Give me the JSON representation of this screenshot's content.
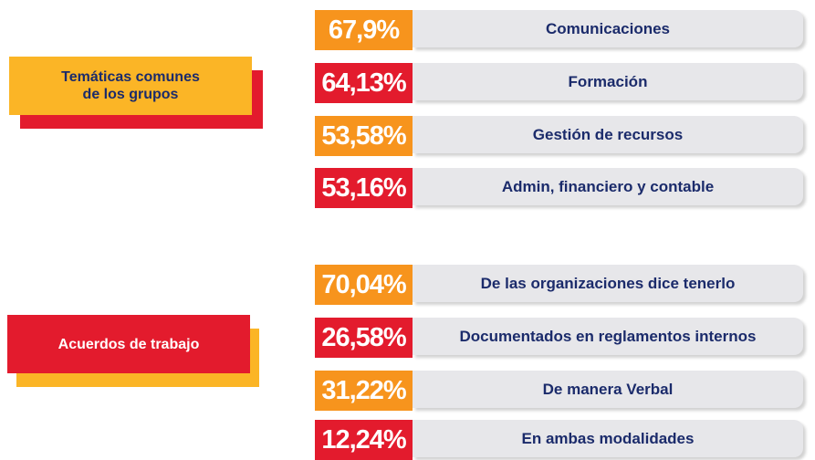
{
  "sections": [
    {
      "title": "Temáticas comunes de los grupos",
      "items": [
        {
          "value": "67,9%",
          "label": "Comunicaciones"
        },
        {
          "value": "64,13%",
          "label": "Formación"
        },
        {
          "value": "53,58%",
          "label": "Gestión de recursos"
        },
        {
          "value": "53,16%",
          "label": "Admin, financiero y contable"
        }
      ]
    },
    {
      "title": "Acuerdos de trabajo",
      "items": [
        {
          "value": "70,04%",
          "label": "De las organizaciones dice tenerlo"
        },
        {
          "value": "26,58%",
          "label": "Documentados en reglamentos internos"
        },
        {
          "value": "31,22%",
          "label": "De manera Verbal"
        },
        {
          "value": "12,24%",
          "label": "En ambas modalidades"
        }
      ]
    }
  ]
}
